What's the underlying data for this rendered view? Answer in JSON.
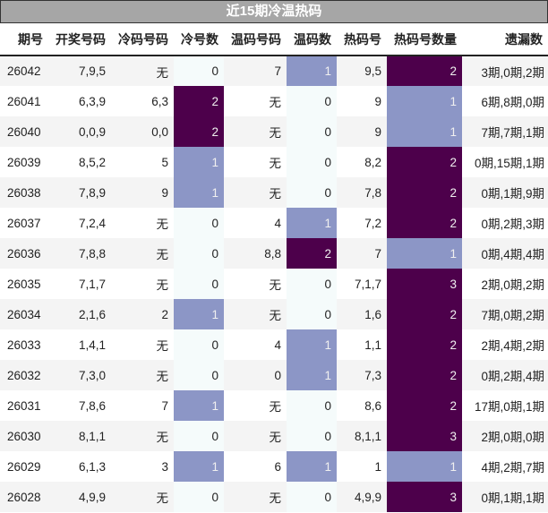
{
  "title": "近15期冷温热码",
  "colors": {
    "title_bg": "#a6a6a6",
    "scale_0": "#f5fbfb",
    "scale_1": "#8c96c6",
    "scale_2": "#4d004b",
    "scale_3": "#4d004b"
  },
  "columns": [
    "期号",
    "开奖号码",
    "冷码号码",
    "冷号数",
    "温码号码",
    "温码数",
    "热码号",
    "热码号数量",
    "遗漏数"
  ],
  "rows": [
    {
      "issue": "26042",
      "draw": "7,9,5",
      "cold": "无",
      "cold_n": "0",
      "warm": "7",
      "warm_n": "1",
      "hot": "9,5",
      "hot_n": "2",
      "miss": "3期,0期,2期"
    },
    {
      "issue": "26041",
      "draw": "6,3,9",
      "cold": "6,3",
      "cold_n": "2",
      "warm": "无",
      "warm_n": "0",
      "hot": "9",
      "hot_n": "1",
      "miss": "6期,8期,0期"
    },
    {
      "issue": "26040",
      "draw": "0,0,9",
      "cold": "0,0",
      "cold_n": "2",
      "warm": "无",
      "warm_n": "0",
      "hot": "9",
      "hot_n": "1",
      "miss": "7期,7期,1期"
    },
    {
      "issue": "26039",
      "draw": "8,5,2",
      "cold": "5",
      "cold_n": "1",
      "warm": "无",
      "warm_n": "0",
      "hot": "8,2",
      "hot_n": "2",
      "miss": "0期,15期,1期"
    },
    {
      "issue": "26038",
      "draw": "7,8,9",
      "cold": "9",
      "cold_n": "1",
      "warm": "无",
      "warm_n": "0",
      "hot": "7,8",
      "hot_n": "2",
      "miss": "0期,1期,9期"
    },
    {
      "issue": "26037",
      "draw": "7,2,4",
      "cold": "无",
      "cold_n": "0",
      "warm": "4",
      "warm_n": "1",
      "hot": "7,2",
      "hot_n": "2",
      "miss": "0期,2期,3期"
    },
    {
      "issue": "26036",
      "draw": "7,8,8",
      "cold": "无",
      "cold_n": "0",
      "warm": "8,8",
      "warm_n": "2",
      "hot": "7",
      "hot_n": "1",
      "miss": "0期,4期,4期"
    },
    {
      "issue": "26035",
      "draw": "7,1,7",
      "cold": "无",
      "cold_n": "0",
      "warm": "无",
      "warm_n": "0",
      "hot": "7,1,7",
      "hot_n": "3",
      "miss": "2期,0期,2期"
    },
    {
      "issue": "26034",
      "draw": "2,1,6",
      "cold": "2",
      "cold_n": "1",
      "warm": "无",
      "warm_n": "0",
      "hot": "1,6",
      "hot_n": "2",
      "miss": "7期,0期,2期"
    },
    {
      "issue": "26033",
      "draw": "1,4,1",
      "cold": "无",
      "cold_n": "0",
      "warm": "4",
      "warm_n": "1",
      "hot": "1,1",
      "hot_n": "2",
      "miss": "2期,4期,2期"
    },
    {
      "issue": "26032",
      "draw": "7,3,0",
      "cold": "无",
      "cold_n": "0",
      "warm": "0",
      "warm_n": "1",
      "hot": "7,3",
      "hot_n": "2",
      "miss": "0期,2期,4期"
    },
    {
      "issue": "26031",
      "draw": "7,8,6",
      "cold": "7",
      "cold_n": "1",
      "warm": "无",
      "warm_n": "0",
      "hot": "8,6",
      "hot_n": "2",
      "miss": "17期,0期,1期"
    },
    {
      "issue": "26030",
      "draw": "8,1,1",
      "cold": "无",
      "cold_n": "0",
      "warm": "无",
      "warm_n": "0",
      "hot": "8,1,1",
      "hot_n": "3",
      "miss": "2期,0期,0期"
    },
    {
      "issue": "26029",
      "draw": "6,1,3",
      "cold": "3",
      "cold_n": "1",
      "warm": "6",
      "warm_n": "1",
      "hot": "1",
      "hot_n": "1",
      "miss": "4期,2期,7期"
    },
    {
      "issue": "26028",
      "draw": "4,9,9",
      "cold": "无",
      "cold_n": "0",
      "warm": "无",
      "warm_n": "0",
      "hot": "4,9,9",
      "hot_n": "3",
      "miss": "0期,1期,1期"
    }
  ]
}
